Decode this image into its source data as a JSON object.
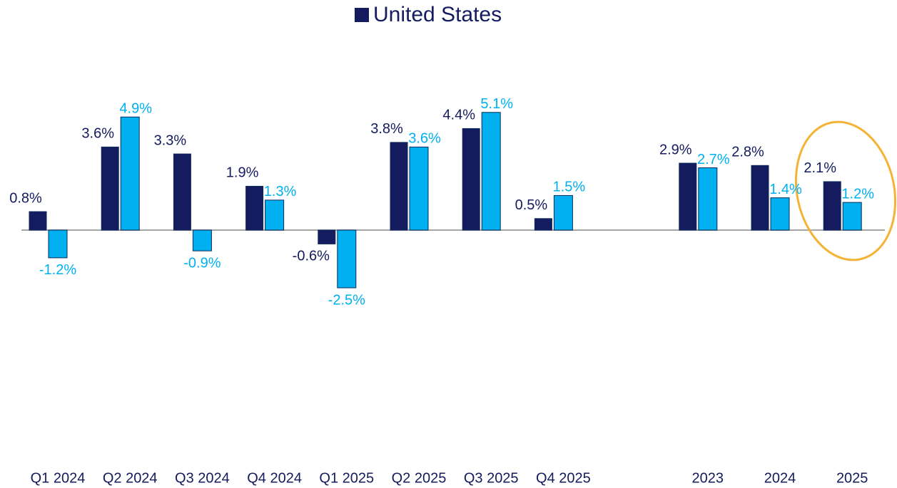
{
  "chart_data": {
    "type": "bar",
    "categories": [
      "Q1 2024",
      "Q2 2024",
      "Q3 2024",
      "Q4 2024",
      "Q1 2025",
      "Q2 2025",
      "Q3 2025",
      "Q4 2025",
      null,
      "2023",
      "2024",
      "2025"
    ],
    "series": [
      {
        "name": "United States",
        "color": "#141b5e",
        "values": [
          0.8,
          3.6,
          3.3,
          1.9,
          -0.6,
          3.8,
          4.4,
          0.5,
          null,
          2.9,
          2.8,
          2.1
        ],
        "value_labels": [
          "0.8%",
          "3.6%",
          "3.3%",
          "1.9%",
          "-0.6%",
          "3.8%",
          "4.4%",
          "0.5%",
          null,
          "2.9%",
          "2.8%",
          "2.1%"
        ]
      },
      {
        "color": "#00b0f0",
        "values": [
          -1.2,
          4.9,
          -0.9,
          1.3,
          -2.5,
          3.6,
          5.1,
          1.5,
          null,
          2.7,
          1.4,
          1.2
        ],
        "value_labels": [
          "-1.2%",
          "4.9%",
          "-0.9%",
          "1.3%",
          "-2.5%",
          "3.6%",
          "5.1%",
          "1.5%",
          null,
          "2.7%",
          "1.4%",
          "1.2%"
        ]
      }
    ]
  }
}
